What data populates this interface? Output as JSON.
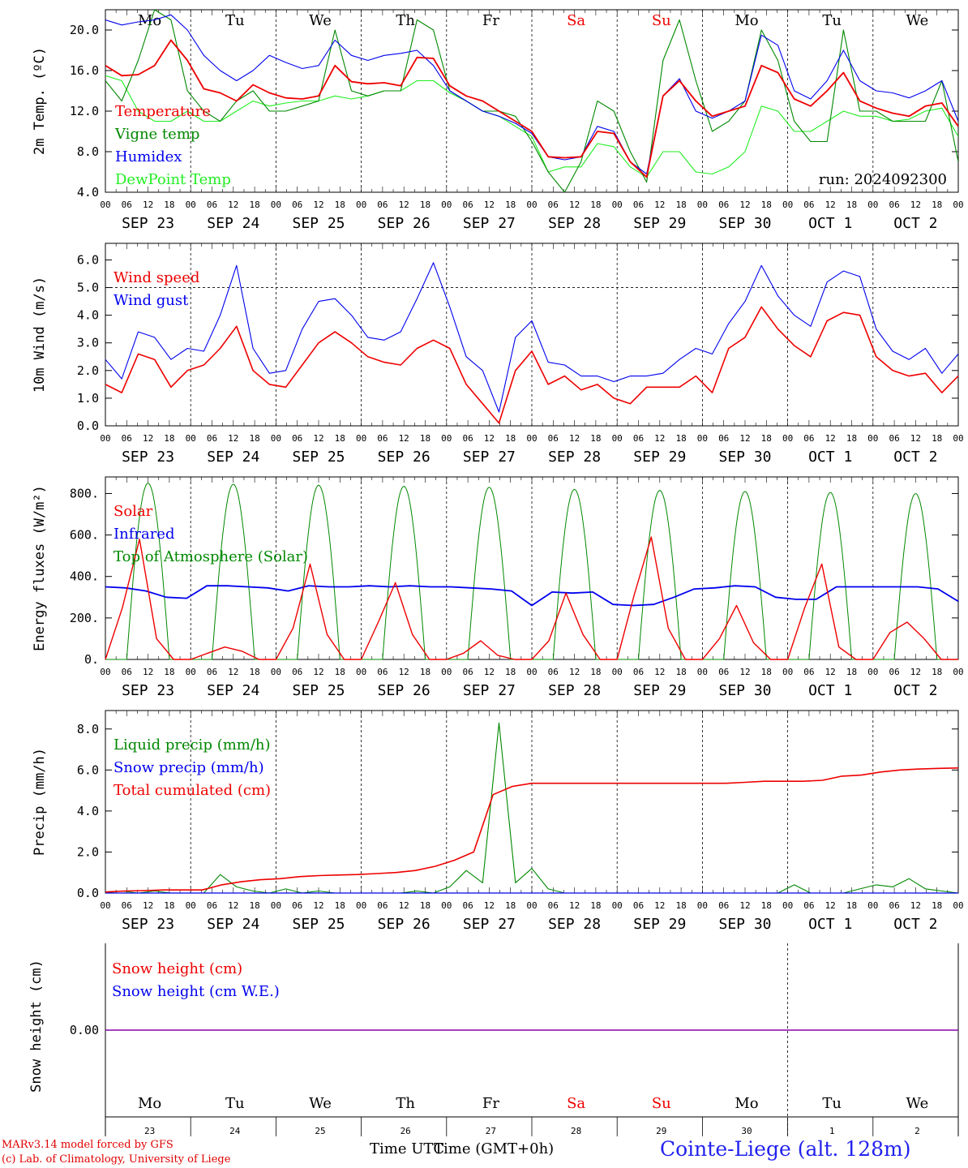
{
  "colors": {
    "red": "#ee0000",
    "blue": "#0000ee",
    "green": "#008800",
    "lightgreen": "#22ee22",
    "purple": "#8800aa",
    "black": "#000000"
  },
  "days": [
    "Mo",
    "Tu",
    "We",
    "Th",
    "Fr",
    "Sa",
    "Su",
    "Mo",
    "Tu",
    "We"
  ],
  "day_colors": [
    "#000",
    "#000",
    "#000",
    "#000",
    "#000",
    "#ee0000",
    "#ee0000",
    "#000",
    "#000",
    "#000"
  ],
  "dates": [
    "SEP 23",
    "SEP 24",
    "SEP 25",
    "SEP 26",
    "SEP 27",
    "SEP 28",
    "SEP 29",
    "SEP 30",
    "OCT  1",
    "OCT  2"
  ],
  "day_numbers": [
    "23",
    "24",
    "25",
    "26",
    "27",
    "28",
    "29",
    "30",
    "1",
    "2"
  ],
  "hour_labels": [
    "00",
    "06",
    "12",
    "18"
  ],
  "final_hour_label": "00",
  "run_label": "run: 2024092300",
  "footer": {
    "line1": "MARv3.14 model forced by GFS",
    "line2": "(c) Lab. of Climatology, University of Liege",
    "x_title": "Time UTC",
    "x_title_overlay": "Time (GMT+0h)",
    "station": "Cointe-Liege (alt. 128m)"
  },
  "chart_data": [
    {
      "type": "line",
      "ylabel": "2m Temp. (ºC)",
      "ylim": [
        4,
        22
      ],
      "yticks": [
        "4.0",
        "8.0",
        "12.0",
        "16.0",
        "20.0"
      ],
      "ytick_values": [
        4,
        8,
        12,
        16,
        20
      ],
      "series": [
        {
          "name": "Temperature",
          "color": "#ee0000",
          "values": [
            16.5,
            15.5,
            15.6,
            16.5,
            19,
            17,
            14.2,
            13.8,
            13,
            14.6,
            13.8,
            13.3,
            13.2,
            13.5,
            16.5,
            14.9,
            14.7,
            14.8,
            14.5,
            17.3,
            17.2,
            14.5,
            13.5,
            13,
            12,
            11,
            10,
            7.5,
            7.4,
            7.5,
            10,
            9.8,
            7,
            5.5,
            13.5,
            15,
            13,
            11.5,
            12,
            12.5,
            16.5,
            15.8,
            13.2,
            12.5,
            14,
            15.8,
            13,
            12.3,
            11.8,
            11.5,
            12.5,
            12.8,
            10.5
          ]
        },
        {
          "name": "Vigne temp",
          "color": "#008800",
          "values": [
            15,
            13,
            17,
            22,
            21,
            14,
            12,
            11,
            13,
            14,
            12,
            12,
            12.5,
            13,
            20,
            14,
            13.5,
            14,
            14,
            21,
            20,
            14,
            13,
            12,
            12,
            11.5,
            9,
            6,
            4,
            7,
            13,
            12,
            8,
            5,
            17,
            21,
            15,
            10,
            11,
            13,
            20,
            17,
            11,
            9,
            9,
            20,
            12,
            12,
            11,
            11,
            11,
            15,
            7
          ]
        },
        {
          "name": "Humidex",
          "color": "#0000ee",
          "values": [
            21,
            20.5,
            20.8,
            21,
            21.5,
            20,
            17.5,
            16,
            15,
            16,
            17.5,
            16.8,
            16.2,
            16.5,
            19,
            17.5,
            17,
            17.5,
            17.7,
            18,
            16.5,
            14,
            13,
            12,
            11.5,
            10.8,
            9.8,
            7.5,
            7.2,
            7.5,
            10.5,
            10,
            7,
            5.8,
            13.5,
            15.2,
            12,
            11.3,
            12,
            13,
            19.5,
            18.5,
            14,
            13.2,
            15,
            18,
            15,
            14,
            13.8,
            13.3,
            14,
            15,
            11
          ]
        },
        {
          "name": "DewPoint Temp",
          "color": "#22ee22",
          "values": [
            15.5,
            15,
            12,
            11,
            11,
            12,
            11,
            11,
            12,
            13,
            12.5,
            12.8,
            13,
            13,
            13.5,
            13.2,
            13.5,
            14,
            14,
            15,
            15,
            13.8,
            13,
            12,
            11.5,
            10.5,
            9.5,
            6,
            6.5,
            6.5,
            8.8,
            8.5,
            6.5,
            5.5,
            8,
            8,
            6,
            5.8,
            6.5,
            8,
            12.5,
            12,
            10,
            10,
            11,
            12,
            11.5,
            11.5,
            11,
            11.2,
            12,
            12.3,
            9.5
          ]
        }
      ]
    },
    {
      "type": "line",
      "ylabel": "10m Wind (m/s)",
      "ylim": [
        0,
        6.6
      ],
      "yticks": [
        "0.0",
        "1.0",
        "2.0",
        "3.0",
        "4.0",
        "5.0",
        "6.0"
      ],
      "ytick_values": [
        0,
        1,
        2,
        3,
        4,
        5,
        6
      ],
      "ref_line": 5.0,
      "series": [
        {
          "name": "Wind speed",
          "color": "#ee0000",
          "values": [
            1.5,
            1.2,
            2.6,
            2.4,
            1.4,
            2.0,
            2.2,
            2.8,
            3.6,
            2.0,
            1.5,
            1.4,
            2.2,
            3.0,
            3.4,
            3.0,
            2.5,
            2.3,
            2.2,
            2.8,
            3.1,
            2.8,
            1.5,
            0.8,
            0.1,
            2.0,
            2.7,
            1.5,
            1.8,
            1.3,
            1.5,
            1.0,
            0.8,
            1.4,
            1.4,
            1.4,
            1.8,
            1.2,
            2.8,
            3.2,
            4.3,
            3.5,
            2.9,
            2.5,
            3.8,
            4.1,
            4.0,
            2.5,
            2.0,
            1.8,
            1.9,
            1.2,
            1.8
          ]
        },
        {
          "name": "Wind gust",
          "color": "#0000ee",
          "values": [
            2.4,
            1.7,
            3.4,
            3.2,
            2.4,
            2.8,
            2.7,
            4.0,
            5.8,
            2.8,
            1.9,
            2.0,
            3.5,
            4.5,
            4.6,
            4.0,
            3.2,
            3.1,
            3.4,
            4.6,
            5.9,
            4.3,
            2.5,
            2.0,
            0.5,
            3.2,
            3.8,
            2.3,
            2.2,
            1.8,
            1.8,
            1.6,
            1.8,
            1.8,
            1.9,
            2.4,
            2.8,
            2.6,
            3.7,
            4.5,
            5.8,
            4.7,
            4.0,
            3.6,
            5.2,
            5.6,
            5.4,
            3.5,
            2.7,
            2.4,
            2.8,
            1.9,
            2.6
          ]
        }
      ]
    },
    {
      "type": "line",
      "ylabel": "Energy fluxes (W/m²)",
      "ylim": [
        0,
        880
      ],
      "yticks": [
        "0.",
        "200.",
        "400.",
        "600.",
        "800."
      ],
      "ytick_values": [
        0,
        200,
        400,
        600,
        800
      ],
      "series": [
        {
          "name": "Solar",
          "color": "#ee0000",
          "values": [
            0,
            250,
            580,
            100,
            0,
            0,
            30,
            60,
            40,
            0,
            0,
            150,
            460,
            120,
            0,
            0,
            180,
            370,
            120,
            0,
            0,
            30,
            90,
            20,
            0,
            0,
            90,
            320,
            120,
            0,
            0,
            310,
            590,
            150,
            0,
            0,
            100,
            260,
            80,
            0,
            0,
            250,
            460,
            60,
            0,
            0,
            130,
            180,
            100,
            0,
            0
          ]
        },
        {
          "name": "Infrared",
          "color": "#0000ee",
          "values": [
            350,
            345,
            330,
            300,
            295,
            355,
            355,
            350,
            345,
            330,
            355,
            350,
            350,
            355,
            350,
            355,
            350,
            350,
            345,
            340,
            330,
            260,
            325,
            320,
            325,
            265,
            260,
            265,
            300,
            340,
            345,
            355,
            350,
            300,
            290,
            290,
            350,
            350,
            350,
            350,
            350,
            340,
            280
          ]
        },
        {
          "name": "Top of Atmosphere (Solar)",
          "color": "#008800",
          "peaks": [
            850,
            845,
            840,
            835,
            830,
            820,
            815,
            810,
            805,
            800
          ]
        }
      ]
    },
    {
      "type": "line",
      "ylabel": "Precip (mm/h)",
      "ylim": [
        0,
        8.9
      ],
      "yticks": [
        "0.0",
        "2.0",
        "4.0",
        "6.0",
        "8.0"
      ],
      "ytick_values": [
        0,
        2,
        4,
        6,
        8
      ],
      "series": [
        {
          "name": "Liquid precip (mm/h)",
          "color": "#008800",
          "values": [
            0,
            0.1,
            0,
            0.1,
            0,
            0,
            0,
            0.9,
            0.3,
            0.1,
            0,
            0.2,
            0,
            0.1,
            0,
            0,
            0,
            0,
            0,
            0.1,
            0,
            0.3,
            1.1,
            0.5,
            8.3,
            0.5,
            1.2,
            0.2,
            0,
            0,
            0,
            0,
            0,
            0,
            0,
            0,
            0,
            0,
            0,
            0,
            0,
            0,
            0.4,
            0,
            0,
            0,
            0.2,
            0.4,
            0.3,
            0.7,
            0.2,
            0.1,
            0
          ]
        },
        {
          "name": "Snow precip (mm/h)",
          "color": "#0000ee",
          "values": [
            0,
            0
          ]
        },
        {
          "name": "Total cumulated (cm)",
          "color": "#ee0000",
          "values": [
            0.05,
            0.1,
            0.12,
            0.15,
            0.15,
            0.15,
            0.4,
            0.55,
            0.65,
            0.7,
            0.8,
            0.85,
            0.88,
            0.9,
            0.95,
            1.0,
            1.1,
            1.3,
            1.6,
            2.0,
            4.8,
            5.2,
            5.35,
            5.35,
            5.35,
            5.35,
            5.35,
            5.35,
            5.35,
            5.35,
            5.35,
            5.35,
            5.35,
            5.4,
            5.45,
            5.45,
            5.45,
            5.5,
            5.7,
            5.75,
            5.9,
            6.0,
            6.05,
            6.08,
            6.1
          ]
        }
      ]
    },
    {
      "type": "line",
      "ylabel": "Snow height (cm)",
      "yticks": [
        "0.00"
      ],
      "series": [
        {
          "name": "Snow height (cm)",
          "color": "#ee0000",
          "values": [
            0,
            0
          ]
        },
        {
          "name": "Snow height (cm W.E.)",
          "color": "#0000ee",
          "values": [
            0,
            0
          ]
        }
      ]
    }
  ]
}
